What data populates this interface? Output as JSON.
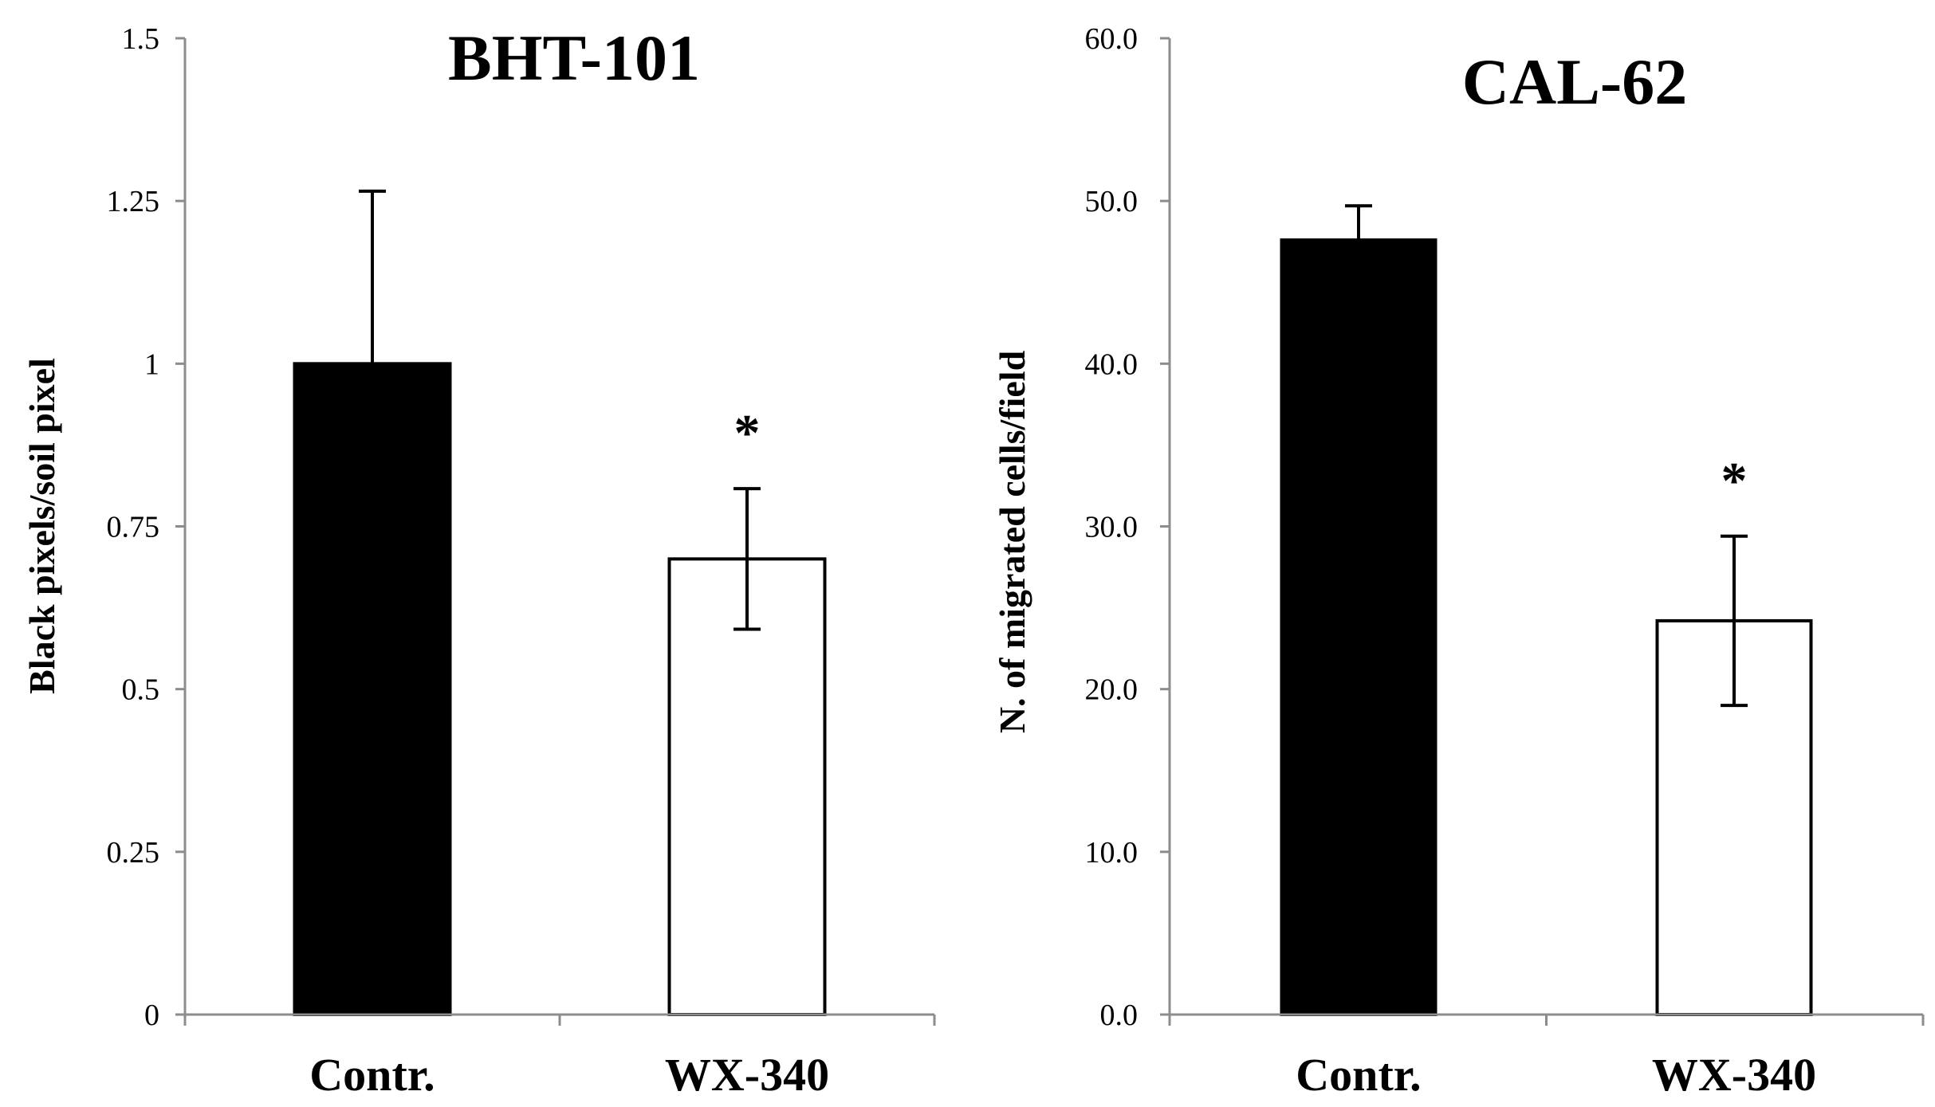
{
  "colors": {
    "bar_dark": "#000000",
    "bar_light": "#ffffff",
    "axis": "#8c8c8c",
    "text": "#000000"
  },
  "chart_data": [
    {
      "type": "bar",
      "title": "BHT-101",
      "xlabel": "",
      "ylabel": "Black pixels/soil pixel",
      "categories": [
        "Contr.",
        "WX-340"
      ],
      "values": [
        1.0,
        0.7
      ],
      "errors": [
        0.265,
        0.108
      ],
      "annotations": [
        "",
        "*"
      ],
      "ylim": [
        0,
        1.5
      ],
      "yticks": [
        0,
        0.25,
        0.5,
        0.75,
        1,
        1.25,
        1.5
      ],
      "ytick_labels": [
        "0",
        "0.25",
        "0.5",
        "0.75",
        "1",
        "1.25",
        "1.5"
      ],
      "bar_colors": [
        "#000000",
        "#ffffff"
      ],
      "grid": false
    },
    {
      "type": "bar",
      "title": "CAL-62",
      "xlabel": "",
      "ylabel": "N. of migrated cells/field",
      "categories": [
        "Contr.",
        "WX-340"
      ],
      "values": [
        47.6,
        24.2
      ],
      "errors": [
        2.1,
        5.2
      ],
      "annotations": [
        "",
        "*"
      ],
      "ylim": [
        0,
        60
      ],
      "yticks": [
        0,
        10,
        20,
        30,
        40,
        50,
        60
      ],
      "ytick_labels": [
        "0.0",
        "10.0",
        "20.0",
        "30.0",
        "40.0",
        "50.0",
        "60.0"
      ],
      "bar_colors": [
        "#000000",
        "#ffffff"
      ],
      "grid": false
    }
  ]
}
